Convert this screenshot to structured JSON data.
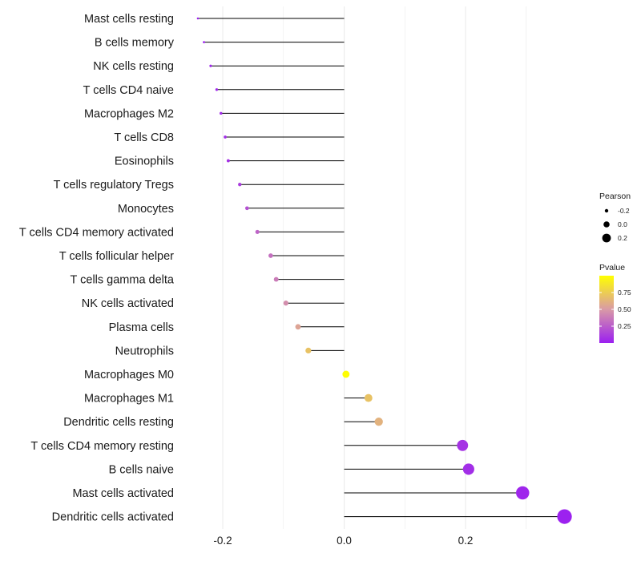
{
  "chart_data": {
    "type": "lollipop",
    "categories": [
      "Mast cells resting",
      "B cells memory",
      "NK cells resting",
      "T cells CD4 naive",
      "Macrophages M2",
      "T cells CD8",
      "Eosinophils",
      "T cells regulatory  Tregs ",
      "Monocytes",
      "T cells CD4 memory activated",
      "T cells follicular helper",
      "T cells gamma delta",
      "NK cells activated",
      "Plasma cells",
      "Neutrophils",
      "Macrophages M0",
      "Macrophages M1",
      "Dendritic cells resting",
      "T cells CD4 memory resting",
      "B cells naive",
      "Mast cells activated",
      "Dendritic cells activated"
    ],
    "pearson": [
      -0.241,
      -0.231,
      -0.22,
      -0.21,
      -0.203,
      -0.196,
      -0.191,
      -0.172,
      -0.16,
      -0.143,
      -0.121,
      -0.112,
      -0.096,
      -0.076,
      -0.059,
      0.003,
      0.04,
      0.057,
      0.195,
      0.205,
      0.294,
      0.363
    ],
    "pvalue": [
      0.01,
      0.02,
      0.03,
      0.04,
      0.05,
      0.06,
      0.07,
      0.12,
      0.2,
      0.28,
      0.33,
      0.38,
      0.45,
      0.55,
      0.7,
      0.99,
      0.7,
      0.62,
      0.08,
      0.06,
      0.03,
      0.01
    ],
    "xlim": [
      -0.27,
      0.39
    ],
    "xticks": [
      -0.2,
      0.0,
      0.2
    ],
    "xtick_labels": [
      "-0.2",
      "0.0",
      "0.2"
    ],
    "xlabel": "",
    "ylabel": "",
    "grid": true,
    "legend": {
      "placement": "right",
      "size_title": "Pearson",
      "size_values": [
        -0.2,
        0.0,
        0.2
      ],
      "size_labels": [
        "-0.2",
        "0.0",
        "0.2"
      ],
      "color_title": "Pvalue",
      "color_ticks": [
        0.25,
        0.5,
        0.75
      ],
      "color_labels": [
        "0.25",
        "0.50",
        "0.75"
      ],
      "color_range": [
        0.0,
        1.0
      ],
      "color_low": "#9b1ff0",
      "color_mid": "#d99aa6",
      "color_high": "#ffff00"
    },
    "stem_color": "#000000",
    "grid_color": "#ebebeb"
  }
}
